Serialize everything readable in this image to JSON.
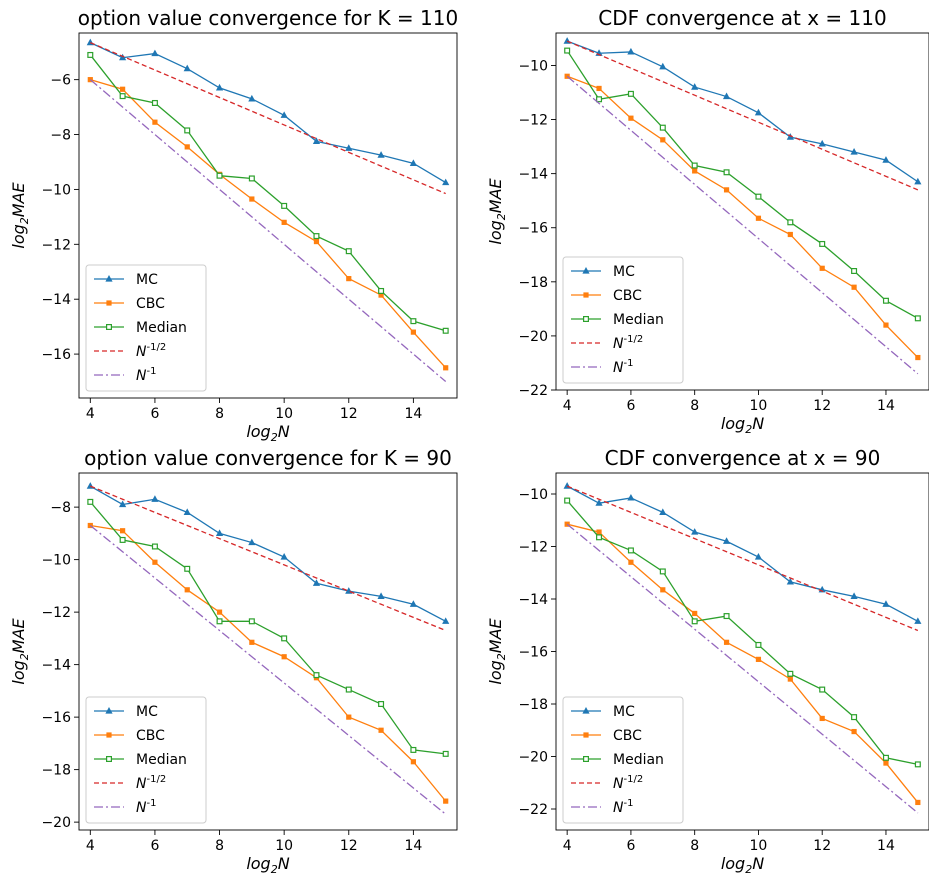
{
  "chart_data": [
    {
      "type": "line",
      "title": "option value convergence for K = 110",
      "xlabel": "log2N",
      "ylabel": "log2MAE",
      "xlim": [
        3.65,
        15.35
      ],
      "ylim": [
        -17.6,
        -4.3
      ],
      "xticks": [
        4,
        6,
        8,
        10,
        12,
        14
      ],
      "yticks": [
        -16,
        -14,
        -12,
        -10,
        -8,
        -6
      ],
      "legend_position": "lower-left",
      "x": [
        4,
        5,
        6,
        7,
        8,
        9,
        10,
        11,
        12,
        13,
        14,
        15
      ],
      "series": [
        {
          "name": "MC",
          "color": "#1f77b4",
          "style": "solid",
          "marker": "triangle",
          "values": [
            -4.65,
            -5.2,
            -5.05,
            -5.6,
            -6.3,
            -6.7,
            -7.3,
            -8.25,
            -8.5,
            -8.75,
            -9.05,
            -9.75
          ]
        },
        {
          "name": "CBC",
          "color": "#ff7f0e",
          "style": "solid",
          "marker": "square",
          "values": [
            -6.0,
            -6.35,
            -7.55,
            -8.45,
            -9.45,
            -10.35,
            -11.2,
            -11.9,
            -13.25,
            -13.85,
            -15.2,
            -16.5
          ]
        },
        {
          "name": "Median",
          "color": "#2ca02c",
          "style": "solid",
          "marker": "open-square",
          "values": [
            -5.1,
            -6.6,
            -6.85,
            -7.85,
            -9.5,
            -9.6,
            -10.6,
            -11.7,
            -12.25,
            -13.7,
            -14.8,
            -15.15
          ]
        },
        {
          "name": "N^{-1/2}",
          "color": "#d62728",
          "style": "dashed",
          "marker": "none",
          "values": [
            -4.65,
            -5.15,
            -5.65,
            -6.15,
            -6.65,
            -7.15,
            -7.65,
            -8.15,
            -8.65,
            -9.15,
            -9.65,
            -10.15
          ]
        },
        {
          "name": "N^{-1}",
          "color": "#9467bd",
          "style": "dashdot",
          "marker": "none",
          "values": [
            -6.0,
            -7.0,
            -8.0,
            -9.0,
            -10.0,
            -11.0,
            -12.0,
            -13.0,
            -14.0,
            -15.0,
            -16.0,
            -17.0
          ]
        }
      ]
    },
    {
      "type": "line",
      "title": "CDF convergence at x = 110",
      "xlabel": "log2N",
      "ylabel": "log2MAE",
      "xlim": [
        3.65,
        15.35
      ],
      "ylim": [
        -22.0,
        -8.8
      ],
      "xticks": [
        4,
        6,
        8,
        10,
        12,
        14
      ],
      "yticks": [
        -22,
        -20,
        -18,
        -16,
        -14,
        -12,
        -10
      ],
      "legend_position": "lower-left",
      "x": [
        4,
        5,
        6,
        7,
        8,
        9,
        10,
        11,
        12,
        13,
        14,
        15
      ],
      "series": [
        {
          "name": "MC",
          "color": "#1f77b4",
          "style": "solid",
          "marker": "triangle",
          "values": [
            -9.1,
            -9.55,
            -9.5,
            -10.05,
            -10.8,
            -11.15,
            -11.75,
            -12.65,
            -12.9,
            -13.2,
            -13.5,
            -14.3
          ]
        },
        {
          "name": "CBC",
          "color": "#ff7f0e",
          "style": "solid",
          "marker": "square",
          "values": [
            -10.4,
            -10.85,
            -11.95,
            -12.75,
            -13.9,
            -14.6,
            -15.65,
            -16.25,
            -17.5,
            -18.2,
            -19.6,
            -20.8
          ]
        },
        {
          "name": "Median",
          "color": "#2ca02c",
          "style": "solid",
          "marker": "open-square",
          "values": [
            -9.45,
            -11.25,
            -11.05,
            -12.3,
            -13.7,
            -13.95,
            -14.85,
            -15.8,
            -16.6,
            -17.6,
            -18.7,
            -19.35
          ]
        },
        {
          "name": "N^{-1/2}",
          "color": "#d62728",
          "style": "dashed",
          "marker": "none",
          "values": [
            -9.1,
            -9.6,
            -10.1,
            -10.6,
            -11.1,
            -11.6,
            -12.1,
            -12.6,
            -13.1,
            -13.6,
            -14.1,
            -14.6
          ]
        },
        {
          "name": "N^{-1}",
          "color": "#9467bd",
          "style": "dashdot",
          "marker": "none",
          "values": [
            -10.4,
            -11.4,
            -12.4,
            -13.4,
            -14.4,
            -15.4,
            -16.4,
            -17.4,
            -18.4,
            -19.4,
            -20.4,
            -21.4
          ]
        }
      ]
    },
    {
      "type": "line",
      "title": "option value convergence for K = 90",
      "xlabel": "log2N",
      "ylabel": "log2MAE",
      "xlim": [
        3.65,
        15.35
      ],
      "ylim": [
        -20.3,
        -6.7
      ],
      "xticks": [
        4,
        6,
        8,
        10,
        12,
        14
      ],
      "yticks": [
        -20,
        -18,
        -16,
        -14,
        -12,
        -10,
        -8
      ],
      "legend_position": "lower-left",
      "x": [
        4,
        5,
        6,
        7,
        8,
        9,
        10,
        11,
        12,
        13,
        14,
        15
      ],
      "series": [
        {
          "name": "MC",
          "color": "#1f77b4",
          "style": "solid",
          "marker": "triangle",
          "values": [
            -7.2,
            -7.9,
            -7.7,
            -8.2,
            -9.0,
            -9.35,
            -9.9,
            -10.9,
            -11.2,
            -11.4,
            -11.7,
            -12.35
          ]
        },
        {
          "name": "CBC",
          "color": "#ff7f0e",
          "style": "solid",
          "marker": "square",
          "values": [
            -8.7,
            -8.9,
            -10.1,
            -11.15,
            -12.0,
            -13.15,
            -13.7,
            -14.5,
            -16.0,
            -16.5,
            -17.7,
            -19.2
          ]
        },
        {
          "name": "Median",
          "color": "#2ca02c",
          "style": "solid",
          "marker": "open-square",
          "values": [
            -7.8,
            -9.25,
            -9.5,
            -10.35,
            -12.35,
            -12.35,
            -13.0,
            -14.4,
            -14.95,
            -15.5,
            -17.25,
            -17.4
          ]
        },
        {
          "name": "N^{-1/2}",
          "color": "#d62728",
          "style": "dashed",
          "marker": "none",
          "values": [
            -7.2,
            -7.7,
            -8.2,
            -8.7,
            -9.2,
            -9.7,
            -10.2,
            -10.7,
            -11.2,
            -11.7,
            -12.2,
            -12.7
          ]
        },
        {
          "name": "N^{-1}",
          "color": "#9467bd",
          "style": "dashdot",
          "marker": "none",
          "values": [
            -8.7,
            -9.7,
            -10.7,
            -11.7,
            -12.7,
            -13.7,
            -14.7,
            -15.7,
            -16.7,
            -17.7,
            -18.7,
            -19.7
          ]
        }
      ]
    },
    {
      "type": "line",
      "title": "CDF convergence at x = 90",
      "xlabel": "log2N",
      "ylabel": "log2MAE",
      "xlim": [
        3.65,
        15.35
      ],
      "ylim": [
        -22.8,
        -9.2
      ],
      "xticks": [
        4,
        6,
        8,
        10,
        12,
        14
      ],
      "yticks": [
        -22,
        -20,
        -18,
        -16,
        -14,
        -12,
        -10
      ],
      "legend_position": "lower-left",
      "x": [
        4,
        5,
        6,
        7,
        8,
        9,
        10,
        11,
        12,
        13,
        14,
        15
      ],
      "series": [
        {
          "name": "MC",
          "color": "#1f77b4",
          "style": "solid",
          "marker": "triangle",
          "values": [
            -9.7,
            -10.35,
            -10.15,
            -10.7,
            -11.45,
            -11.8,
            -12.4,
            -13.35,
            -13.65,
            -13.9,
            -14.2,
            -14.85
          ]
        },
        {
          "name": "CBC",
          "color": "#ff7f0e",
          "style": "solid",
          "marker": "square",
          "values": [
            -11.15,
            -11.45,
            -12.6,
            -13.65,
            -14.55,
            -15.65,
            -16.3,
            -17.05,
            -18.55,
            -19.05,
            -20.25,
            -21.75
          ]
        },
        {
          "name": "Median",
          "color": "#2ca02c",
          "style": "solid",
          "marker": "open-square",
          "values": [
            -10.25,
            -11.65,
            -12.15,
            -12.95,
            -14.85,
            -14.65,
            -15.75,
            -16.85,
            -17.45,
            -18.5,
            -20.05,
            -20.3
          ]
        },
        {
          "name": "N^{-1/2}",
          "color": "#d62728",
          "style": "dashed",
          "marker": "none",
          "values": [
            -9.7,
            -10.2,
            -10.7,
            -11.2,
            -11.7,
            -12.2,
            -12.7,
            -13.2,
            -13.7,
            -14.2,
            -14.7,
            -15.2
          ]
        },
        {
          "name": "N^{-1}",
          "color": "#9467bd",
          "style": "dashdot",
          "marker": "none",
          "values": [
            -11.15,
            -12.15,
            -13.15,
            -14.15,
            -15.15,
            -16.15,
            -17.15,
            -18.15,
            -19.15,
            -20.15,
            -21.15,
            -22.15
          ]
        }
      ]
    }
  ]
}
